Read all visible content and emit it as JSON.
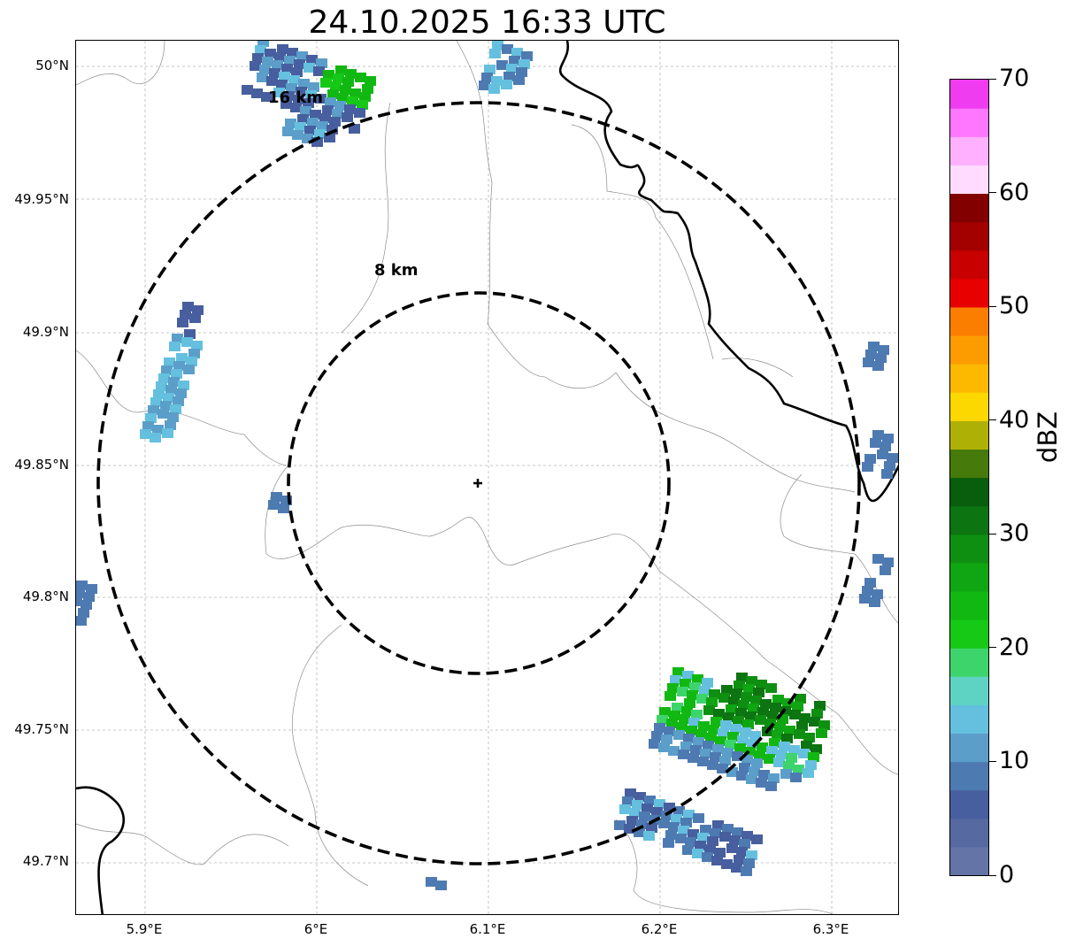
{
  "title": "24.10.2025 16:33 UTC",
  "map": {
    "latitude_ticks": [
      "50°N",
      "49.95°N",
      "49.9°N",
      "49.85°N",
      "49.8°N",
      "49.75°N",
      "49.7°N"
    ],
    "longitude_ticks": [
      "5.9°E",
      "6°E",
      "6.1°E",
      "6.2°E",
      "6.3°E"
    ],
    "range_rings": [
      {
        "label": "8 km",
        "radius_km": 8
      },
      {
        "label": "16 km",
        "radius_km": 16
      }
    ],
    "radar_site": {
      "lat": 49.844,
      "lon": 6.096
    },
    "gridlines": true,
    "borders_color": "#999999",
    "country_border_color": "#000000"
  },
  "colorbar": {
    "unit": "dBZ",
    "tick_labels": [
      "0",
      "10",
      "20",
      "30",
      "40",
      "50",
      "60",
      "70"
    ],
    "bin_size": 2.5,
    "colors": [
      "#6474a6",
      "#566aa1",
      "#475f9e",
      "#4e7ab2",
      "#5b9ec9",
      "#64c0de",
      "#5ed3c4",
      "#3ed46c",
      "#15c916",
      "#12b812",
      "#10a512",
      "#0f8f12",
      "#0c7410",
      "#085e0c",
      "#467a0a",
      "#aeb006",
      "#fcd700",
      "#fcb900",
      "#fc9c00",
      "#fc7e00",
      "#e80000",
      "#c80000",
      "#a30000",
      "#820000",
      "#ffdcff",
      "#ffb0ff",
      "#ff76ff",
      "#f03cf0"
    ]
  }
}
